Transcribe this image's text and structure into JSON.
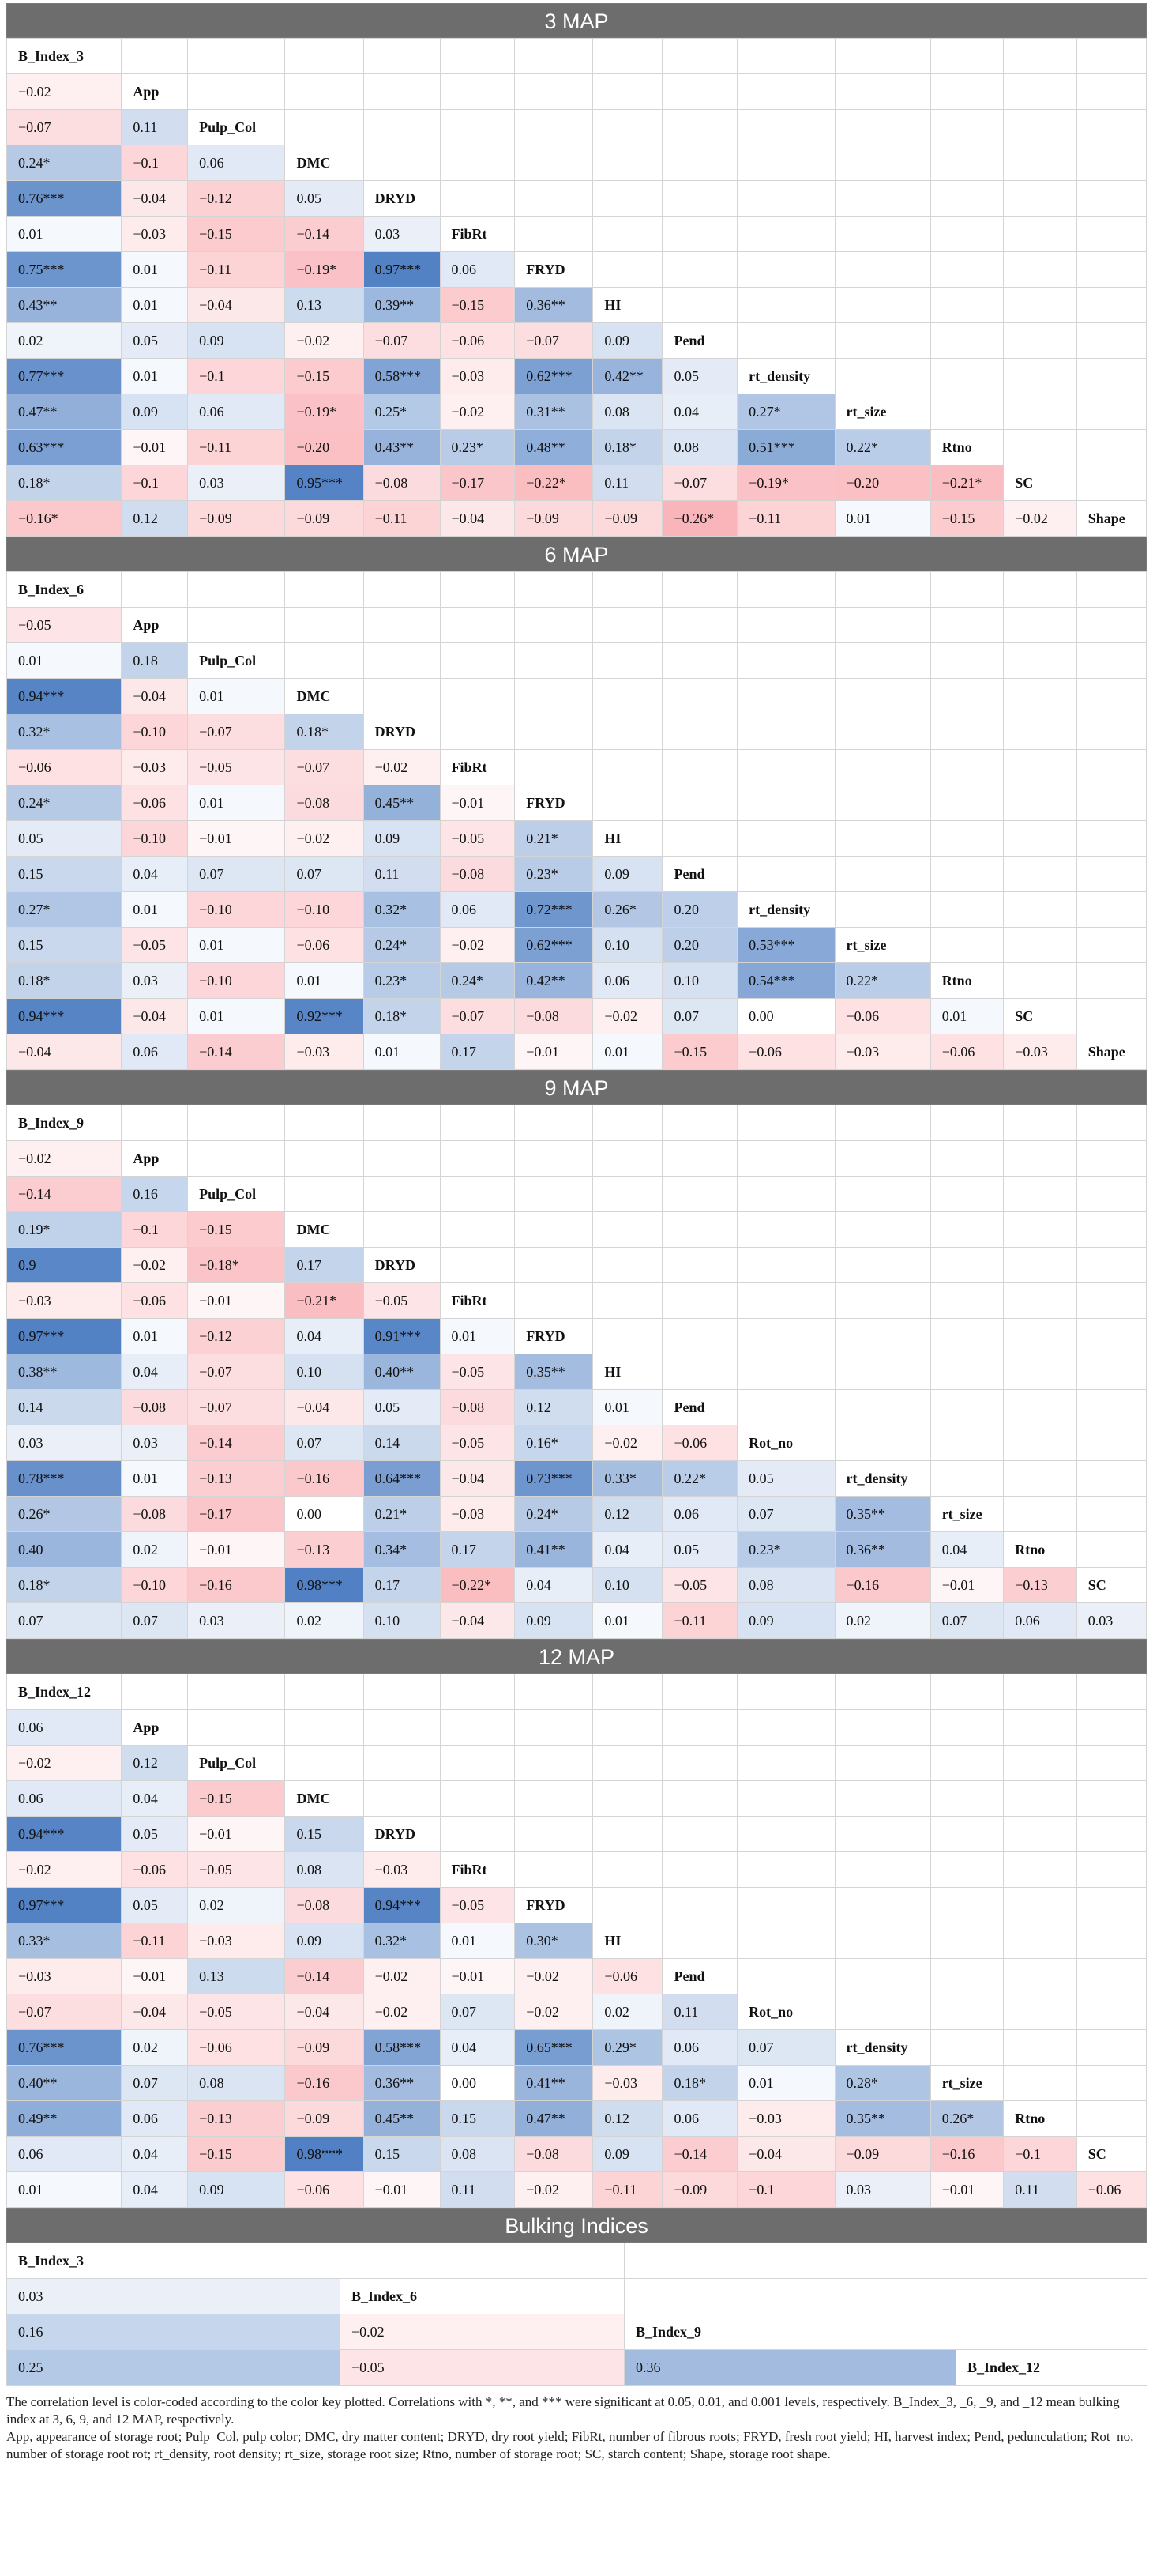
{
  "sections": [
    {
      "title": "3 MAP",
      "rows": [
        {
          "label": "B_Index_3",
          "values": []
        },
        {
          "label": "App",
          "values": [
            "−0.02"
          ]
        },
        {
          "label": "Pulp_Col",
          "values": [
            "−0.07",
            "0.11"
          ]
        },
        {
          "label": "DMC",
          "values": [
            "0.24*",
            "−0.1",
            "0.06"
          ]
        },
        {
          "label": "DRYD",
          "values": [
            "0.76***",
            "−0.04",
            "−0.12",
            "0.05"
          ]
        },
        {
          "label": "FibRt",
          "values": [
            "0.01",
            "−0.03",
            "−0.15",
            "−0.14",
            "0.03"
          ]
        },
        {
          "label": "FRYD",
          "values": [
            "0.75***",
            "0.01",
            "−0.11",
            "−0.19*",
            "0.97***",
            "0.06"
          ]
        },
        {
          "label": "HI",
          "values": [
            "0.43**",
            "0.01",
            "−0.04",
            "0.13",
            "0.39**",
            "−0.15",
            "0.36**"
          ]
        },
        {
          "label": "Pend",
          "values": [
            "0.02",
            "0.05",
            "0.09",
            "−0.02",
            "−0.07",
            "−0.06",
            "−0.07",
            "0.09"
          ]
        },
        {
          "label": "rt_density",
          "values": [
            "0.77***",
            "0.01",
            "−0.1",
            "−0.15",
            "0.58***",
            "−0.03",
            "0.62***",
            "0.42**",
            "0.05"
          ]
        },
        {
          "label": "rt_size",
          "values": [
            "0.47**",
            "0.09",
            "0.06",
            "−0.19*",
            "0.25*",
            "−0.02",
            "0.31**",
            "0.08",
            "0.04",
            "0.27*"
          ]
        },
        {
          "label": "Rtno",
          "values": [
            "0.63***",
            "−0.01",
            "−0.11",
            "−0.20",
            "0.43**",
            "0.23*",
            "0.48**",
            "0.18*",
            "0.08",
            "0.51***",
            "0.22*"
          ]
        },
        {
          "label": "SC",
          "values": [
            "0.18*",
            "−0.1",
            "0.03",
            "0.95***",
            "−0.08",
            "−0.17",
            "−0.22*",
            "0.11",
            "−0.07",
            "−0.19*",
            "−0.20",
            "−0.21*"
          ]
        },
        {
          "label": "Shape",
          "values": [
            "−0.16*",
            "0.12",
            "−0.09",
            "−0.09",
            "−0.11",
            "−0.04",
            "−0.09",
            "−0.09",
            "−0.26*",
            "−0.11",
            "0.01",
            "−0.15",
            "−0.02"
          ]
        }
      ]
    },
    {
      "title": "6 MAP",
      "rows": [
        {
          "label": "B_Index_6",
          "values": []
        },
        {
          "label": "App",
          "values": [
            "−0.05"
          ]
        },
        {
          "label": "Pulp_Col",
          "values": [
            "0.01",
            "0.18"
          ]
        },
        {
          "label": "DMC",
          "values": [
            "0.94***",
            "−0.04",
            "0.01"
          ]
        },
        {
          "label": "DRYD",
          "values": [
            "0.32*",
            "−0.10",
            "−0.07",
            "0.18*"
          ]
        },
        {
          "label": "FibRt",
          "values": [
            "−0.06",
            "−0.03",
            "−0.05",
            "−0.07",
            "−0.02"
          ]
        },
        {
          "label": "FRYD",
          "values": [
            "0.24*",
            "−0.06",
            "0.01",
            "−0.08",
            "0.45**",
            "−0.01"
          ]
        },
        {
          "label": "HI",
          "values": [
            "0.05",
            "−0.10",
            "−0.01",
            "−0.02",
            "0.09",
            "−0.05",
            "0.21*"
          ]
        },
        {
          "label": "Pend",
          "values": [
            "0.15",
            "0.04",
            "0.07",
            "0.07",
            "0.11",
            "−0.08",
            "0.23*",
            "0.09"
          ]
        },
        {
          "label": "rt_density",
          "values": [
            "0.27*",
            "0.01",
            "−0.10",
            "−0.10",
            "0.32*",
            "0.06",
            "0.72***",
            "0.26*",
            "0.20"
          ]
        },
        {
          "label": "rt_size",
          "values": [
            "0.15",
            "−0.05",
            "0.01",
            "−0.06",
            "0.24*",
            "−0.02",
            "0.62***",
            "0.10",
            "0.20",
            "0.53***"
          ]
        },
        {
          "label": "Rtno",
          "values": [
            "0.18*",
            "0.03",
            "−0.10",
            "0.01",
            "0.23*",
            "0.24*",
            "0.42**",
            "0.06",
            "0.10",
            "0.54***",
            "0.22*"
          ]
        },
        {
          "label": "SC",
          "values": [
            "0.94***",
            "−0.04",
            "0.01",
            "0.92***",
            "0.18*",
            "−0.07",
            "−0.08",
            "−0.02",
            "0.07",
            "0.00",
            "−0.06",
            "0.01"
          ]
        },
        {
          "label": "Shape",
          "values": [
            "−0.04",
            "0.06",
            "−0.14",
            "−0.03",
            "0.01",
            "0.17",
            "−0.01",
            "0.01",
            "−0.15",
            "−0.06",
            "−0.03",
            "−0.06",
            "−0.03"
          ]
        }
      ]
    },
    {
      "title": "9 MAP",
      "rows": [
        {
          "label": "B_Index_9",
          "values": []
        },
        {
          "label": "App",
          "values": [
            "−0.02"
          ]
        },
        {
          "label": "Pulp_Col",
          "values": [
            "−0.14",
            "0.16"
          ]
        },
        {
          "label": "DMC",
          "values": [
            "0.19*",
            "−0.1",
            "−0.15"
          ]
        },
        {
          "label": "DRYD",
          "values": [
            "0.9",
            "−0.02",
            "−0.18*",
            "0.17"
          ]
        },
        {
          "label": "FibRt",
          "values": [
            "−0.03",
            "−0.06",
            "−0.01",
            "−0.21*",
            "−0.05"
          ]
        },
        {
          "label": "FRYD",
          "values": [
            "0.97***",
            "0.01",
            "−0.12",
            "0.04",
            "0.91***",
            "0.01"
          ]
        },
        {
          "label": "HI",
          "values": [
            "0.38**",
            "0.04",
            "−0.07",
            "0.10",
            "0.40**",
            "−0.05",
            "0.35**"
          ]
        },
        {
          "label": "Pend",
          "values": [
            "0.14",
            "−0.08",
            "−0.07",
            "−0.04",
            "0.05",
            "−0.08",
            "0.12",
            "0.01"
          ]
        },
        {
          "label": "Rot_no",
          "values": [
            "0.03",
            "0.03",
            "−0.14",
            "0.07",
            "0.14",
            "−0.05",
            "0.16*",
            "−0.02",
            "−0.06"
          ]
        },
        {
          "label": "rt_density",
          "values": [
            "0.78***",
            "0.01",
            "−0.13",
            "−0.16",
            "0.64***",
            "−0.04",
            "0.73***",
            "0.33*",
            "0.22*",
            "0.05"
          ]
        },
        {
          "label": "rt_size",
          "values": [
            "0.26*",
            "−0.08",
            "−0.17",
            "0.00",
            "0.21*",
            "−0.03",
            "0.24*",
            "0.12",
            "0.06",
            "0.07",
            "0.35**"
          ]
        },
        {
          "label": "Rtno",
          "values": [
            "0.40",
            "0.02",
            "−0.01",
            "−0.13",
            "0.34*",
            "0.17",
            "0.41**",
            "0.04",
            "0.05",
            "0.23*",
            "0.36**",
            "0.04"
          ]
        },
        {
          "label": "SC",
          "values": [
            "0.18*",
            "−0.10",
            "−0.16",
            "0.98***",
            "0.17",
            "−0.22*",
            "0.04",
            "0.10",
            "−0.05",
            "0.08",
            "−0.16",
            "−0.01",
            "−0.13"
          ]
        },
        {
          "label": "Shape",
          "values": [
            "0.07",
            "0.07",
            "0.03",
            "0.02",
            "0.10",
            "−0.04",
            "0.09",
            "0.01",
            "−0.11",
            "0.09",
            "0.02",
            "0.07",
            "0.06",
            "0.03"
          ]
        }
      ]
    },
    {
      "title": "12 MAP",
      "rows": [
        {
          "label": "B_Index_12",
          "values": []
        },
        {
          "label": "App",
          "values": [
            "0.06"
          ]
        },
        {
          "label": "Pulp_Col",
          "values": [
            "−0.02",
            "0.12"
          ]
        },
        {
          "label": "DMC",
          "values": [
            "0.06",
            "0.04",
            "−0.15"
          ]
        },
        {
          "label": "DRYD",
          "values": [
            "0.94***",
            "0.05",
            "−0.01",
            "0.15"
          ]
        },
        {
          "label": "FibRt",
          "values": [
            "−0.02",
            "−0.06",
            "−0.05",
            "0.08",
            "−0.03"
          ]
        },
        {
          "label": "FRYD",
          "values": [
            "0.97***",
            "0.05",
            "0.02",
            "−0.08",
            "0.94***",
            "−0.05"
          ]
        },
        {
          "label": "HI",
          "values": [
            "0.33*",
            "−0.11",
            "−0.03",
            "0.09",
            "0.32*",
            "0.01",
            "0.30*"
          ]
        },
        {
          "label": "Pend",
          "values": [
            "−0.03",
            "−0.01",
            "0.13",
            "−0.14",
            "−0.02",
            "−0.01",
            "−0.02",
            "−0.06"
          ]
        },
        {
          "label": "Rot_no",
          "values": [
            "−0.07",
            "−0.04",
            "−0.05",
            "−0.04",
            "−0.02",
            "0.07",
            "−0.02",
            "0.02",
            "0.11"
          ]
        },
        {
          "label": "rt_density",
          "values": [
            "0.76***",
            "0.02",
            "−0.06",
            "−0.09",
            "0.58***",
            "0.04",
            "0.65***",
            "0.29*",
            "0.06",
            "0.07"
          ]
        },
        {
          "label": "rt_size",
          "values": [
            "0.40**",
            "0.07",
            "0.08",
            "−0.16",
            "0.36**",
            "0.00",
            "0.41**",
            "−0.03",
            "0.18*",
            "0.01",
            "0.28*"
          ]
        },
        {
          "label": "Rtno",
          "values": [
            "0.49**",
            "0.06",
            "−0.13",
            "−0.09",
            "0.45**",
            "0.15",
            "0.47**",
            "0.12",
            "0.06",
            "−0.03",
            "0.35**",
            "0.26*"
          ]
        },
        {
          "label": "SC",
          "values": [
            "0.06",
            "0.04",
            "−0.15",
            "0.98***",
            "0.15",
            "0.08",
            "−0.08",
            "0.09",
            "−0.14",
            "−0.04",
            "−0.09",
            "−0.16",
            "−0.1"
          ]
        },
        {
          "label": "Shape",
          "values": [
            "0.01",
            "0.04",
            "0.09",
            "−0.06",
            "−0.01",
            "0.11",
            "−0.02",
            "−0.11",
            "−0.09",
            "−0.1",
            "0.03",
            "−0.01",
            "0.11",
            "−0.06"
          ]
        }
      ]
    }
  ],
  "bulking": {
    "title": "Bulking Indices",
    "rows": [
      {
        "label": "B_Index_3",
        "values": []
      },
      {
        "label": "B_Index_6",
        "values": [
          "0.03"
        ]
      },
      {
        "label": "B_Index_9",
        "values": [
          "0.16",
          "−0.02"
        ]
      },
      {
        "label": "B_Index_12",
        "values": [
          "0.25",
          "−0.05",
          "0.36"
        ]
      }
    ]
  },
  "footnotes": [
    "The correlation level is color-coded according to the color key plotted. Correlations with *, **, and *** were significant at 0.05, 0.01, and 0.001 levels, respectively. B_Index_3, _6, _9, and _12 mean bulking index at 3, 6, 9, and 12 MAP, respectively.",
    "App, appearance of storage root; Pulp_Col, pulp color; DMC, dry matter content; DRYD, dry root yield; FibRt, number of fibrous roots; FRYD, fresh root yield; HI, harvest index; Pend, pedunculation; Rot_no, number of storage root rot; rt_density, root density; rt_size, storage root size; Rtno, number of storage root; SC, starch content; Shape, storage root shape."
  ],
  "colors": {
    "positive": "#4f7fc3",
    "negative": "#f2555f",
    "header": "#6d6d6d"
  }
}
